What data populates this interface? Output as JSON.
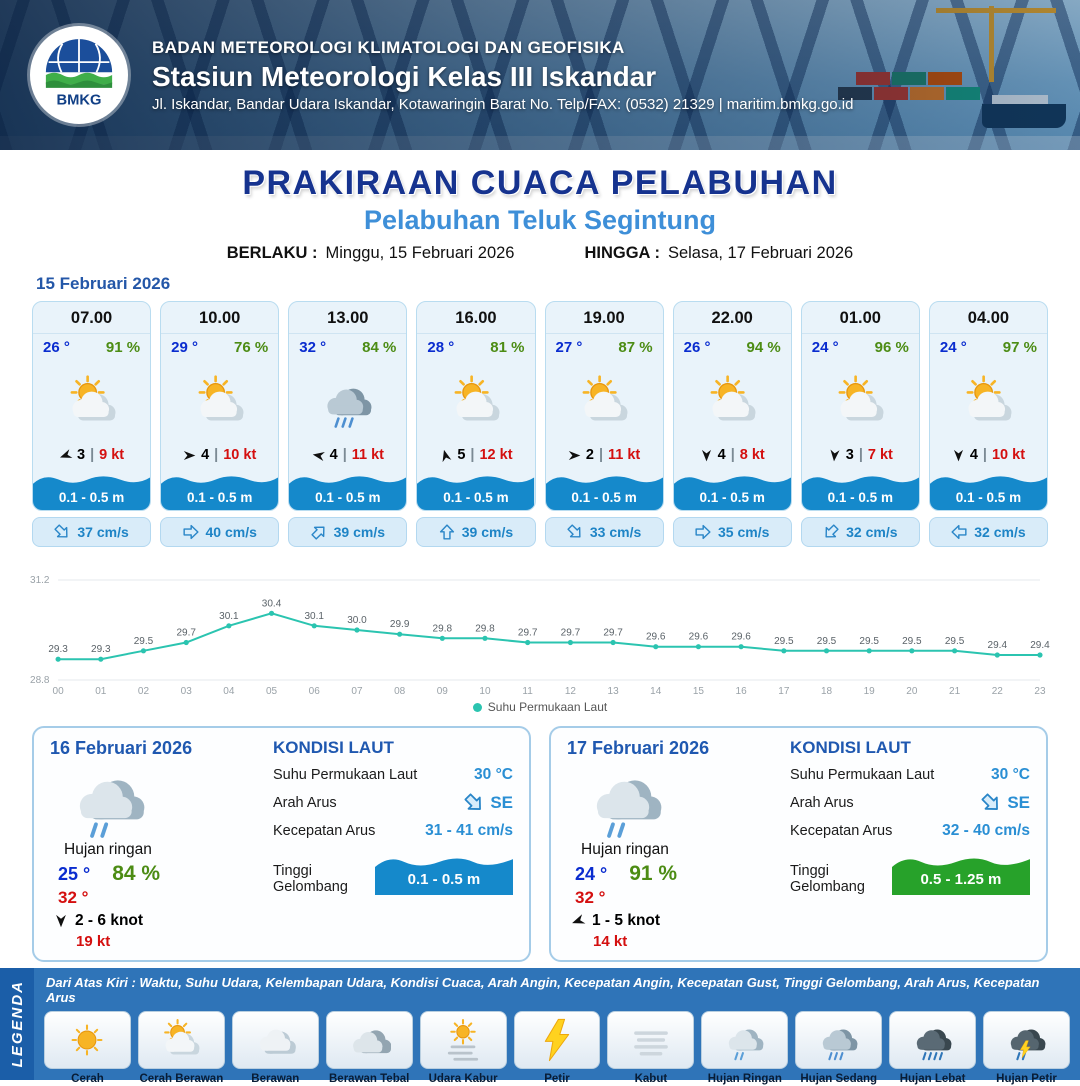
{
  "header": {
    "org": "BADAN METEOROLOGI KLIMATOLOGI DAN GEOFISIKA",
    "station": "Stasiun Meteorologi Kelas III Iskandar",
    "address": "Jl. Iskandar, Bandar Udara Iskandar, Kotawaringin Barat No. Telp/FAX: (0532) 21329 | maritim.bmkg.go.id",
    "logo_text": "BMKG"
  },
  "title": {
    "main": "PRAKIRAAN CUACA PELABUHAN",
    "subtitle": "Pelabuhan Teluk Segintung",
    "berlaku_label": "BERLAKU :",
    "berlaku_value": "Minggu, 15 Februari 2026",
    "hingga_label": "HINGGA :",
    "hingga_value": "Selasa, 17 Februari 2026"
  },
  "labels": {
    "kondisi_laut": "KONDISI LAUT",
    "sst": "Suhu Permukaan Laut",
    "arah_arus": "Arah Arus",
    "kecepatan_arus": "Kecepatan Arus",
    "tinggi_gelombang": "Tinggi Gelombang",
    "sep": "|"
  },
  "forecast": {
    "date": "15 Februari 2026",
    "wave_color": "#1589cb",
    "cards": [
      {
        "time": "07.00",
        "temp": "26 °",
        "rh": "91 %",
        "icon": "cerah-berawan",
        "wind_bft": "3",
        "wind_kt": "9 kt",
        "wind_deg": 250,
        "wave": "0.1 - 0.5 m",
        "cur": "37 cm/s",
        "cur_deg": 135
      },
      {
        "time": "10.00",
        "temp": "29 °",
        "rh": "76 %",
        "icon": "cerah-berawan",
        "wind_bft": "4",
        "wind_kt": "10 kt",
        "wind_deg": 90,
        "wave": "0.1 - 0.5 m",
        "cur": "40 cm/s",
        "cur_deg": 90
      },
      {
        "time": "13.00",
        "temp": "32 °",
        "rh": "84 %",
        "icon": "hujan-sedang",
        "wind_bft": "4",
        "wind_kt": "11 kt",
        "wind_deg": 280,
        "wave": "0.1 - 0.5 m",
        "cur": "39 cm/s",
        "cur_deg": 45
      },
      {
        "time": "16.00",
        "temp": "28 °",
        "rh": "81 %",
        "icon": "cerah-berawan",
        "wind_bft": "5",
        "wind_kt": "12 kt",
        "wind_deg": 345,
        "wave": "0.1 - 0.5 m",
        "cur": "39 cm/s",
        "cur_deg": 0
      },
      {
        "time": "19.00",
        "temp": "27 °",
        "rh": "87 %",
        "icon": "cerah-berawan",
        "wind_bft": "2",
        "wind_kt": "11 kt",
        "wind_deg": 90,
        "wave": "0.1 - 0.5 m",
        "cur": "33 cm/s",
        "cur_deg": 135
      },
      {
        "time": "22.00",
        "temp": "26 °",
        "rh": "94 %",
        "icon": "cerah-berawan",
        "wind_bft": "4",
        "wind_kt": "8 kt",
        "wind_deg": 180,
        "wave": "0.1 - 0.5 m",
        "cur": "35 cm/s",
        "cur_deg": 90
      },
      {
        "time": "01.00",
        "temp": "24 °",
        "rh": "96 %",
        "icon": "cerah-berawan",
        "wind_bft": "3",
        "wind_kt": "7 kt",
        "wind_deg": 185,
        "wave": "0.1 - 0.5 m",
        "cur": "32 cm/s",
        "cur_deg": 225
      },
      {
        "time": "04.00",
        "temp": "24 °",
        "rh": "97 %",
        "icon": "cerah-berawan",
        "wind_bft": "4",
        "wind_kt": "10 kt",
        "wind_deg": 180,
        "wave": "0.1 - 0.5 m",
        "cur": "32 cm/s",
        "cur_deg": 270
      }
    ]
  },
  "chart_data": {
    "type": "line",
    "legend": "Suhu Permukaan Laut",
    "x": [
      "00",
      "01",
      "02",
      "03",
      "04",
      "05",
      "06",
      "07",
      "08",
      "09",
      "10",
      "11",
      "12",
      "13",
      "14",
      "15",
      "16",
      "17",
      "18",
      "19",
      "20",
      "21",
      "22",
      "23"
    ],
    "values": [
      29.3,
      29.3,
      29.5,
      29.7,
      30.1,
      30.4,
      30.1,
      30.0,
      29.9,
      29.8,
      29.8,
      29.7,
      29.7,
      29.7,
      29.6,
      29.6,
      29.6,
      29.5,
      29.5,
      29.5,
      29.5,
      29.5,
      29.4,
      29.4
    ],
    "ylim": [
      28.8,
      31.2
    ],
    "color": "#2bc4b0",
    "grid": true,
    "legend_position": "bottom"
  },
  "days": [
    {
      "date": "16 Februari 2026",
      "icon": "hujan-ringan",
      "condition": "Hujan ringan",
      "temp_min": "25 °",
      "humidity": "84 %",
      "temp_max": "32 °",
      "wind": "2 - 6 knot",
      "wind_deg": 180,
      "gust": "19 kt",
      "sst": "30 °C",
      "cur_dir": "SE",
      "cur_deg": 135,
      "cur_speed": "31 - 41 cm/s",
      "wave": "0.1 - 0.5 m",
      "wave_color": "#1589cb"
    },
    {
      "date": "17 Februari 2026",
      "icon": "hujan-ringan",
      "condition": "Hujan ringan",
      "temp_min": "24 °",
      "humidity": "91 %",
      "temp_max": "32 °",
      "wind": "1 - 5 knot",
      "wind_deg": 250,
      "gust": "14 kt",
      "sst": "30 °C",
      "cur_dir": "SE",
      "cur_deg": 135,
      "cur_speed": "32 - 40 cm/s",
      "wave": "0.5 - 1.25 m",
      "wave_color": "#27a22a"
    }
  ],
  "legend": {
    "title": "LEGENDA",
    "note": "Dari Atas Kiri : Waktu, Suhu Udara, Kelembapan Udara, Kondisi Cuaca, Arah Angin, Kecepatan Angin, Kecepatan Gust, Tinggi Gelombang, Arah Arus, Kecepatan Arus",
    "items": [
      {
        "label": "Cerah",
        "icon": "cerah"
      },
      {
        "label": "Cerah Berawan",
        "icon": "cerah-berawan"
      },
      {
        "label": "Berawan",
        "icon": "berawan"
      },
      {
        "label": "Berawan Tebal",
        "icon": "berawan-tebal"
      },
      {
        "label": "Udara Kabur",
        "icon": "udara-kabur"
      },
      {
        "label": "Petir",
        "icon": "petir"
      },
      {
        "label": "Kabut",
        "icon": "kabut"
      },
      {
        "label": "Hujan Ringan",
        "icon": "hujan-ringan"
      },
      {
        "label": "Hujan Sedang",
        "icon": "hujan-sedang"
      },
      {
        "label": "Hujan Lebat",
        "icon": "hujan-lebat"
      },
      {
        "label": "Hujan Petir",
        "icon": "hujan-petir"
      }
    ]
  }
}
